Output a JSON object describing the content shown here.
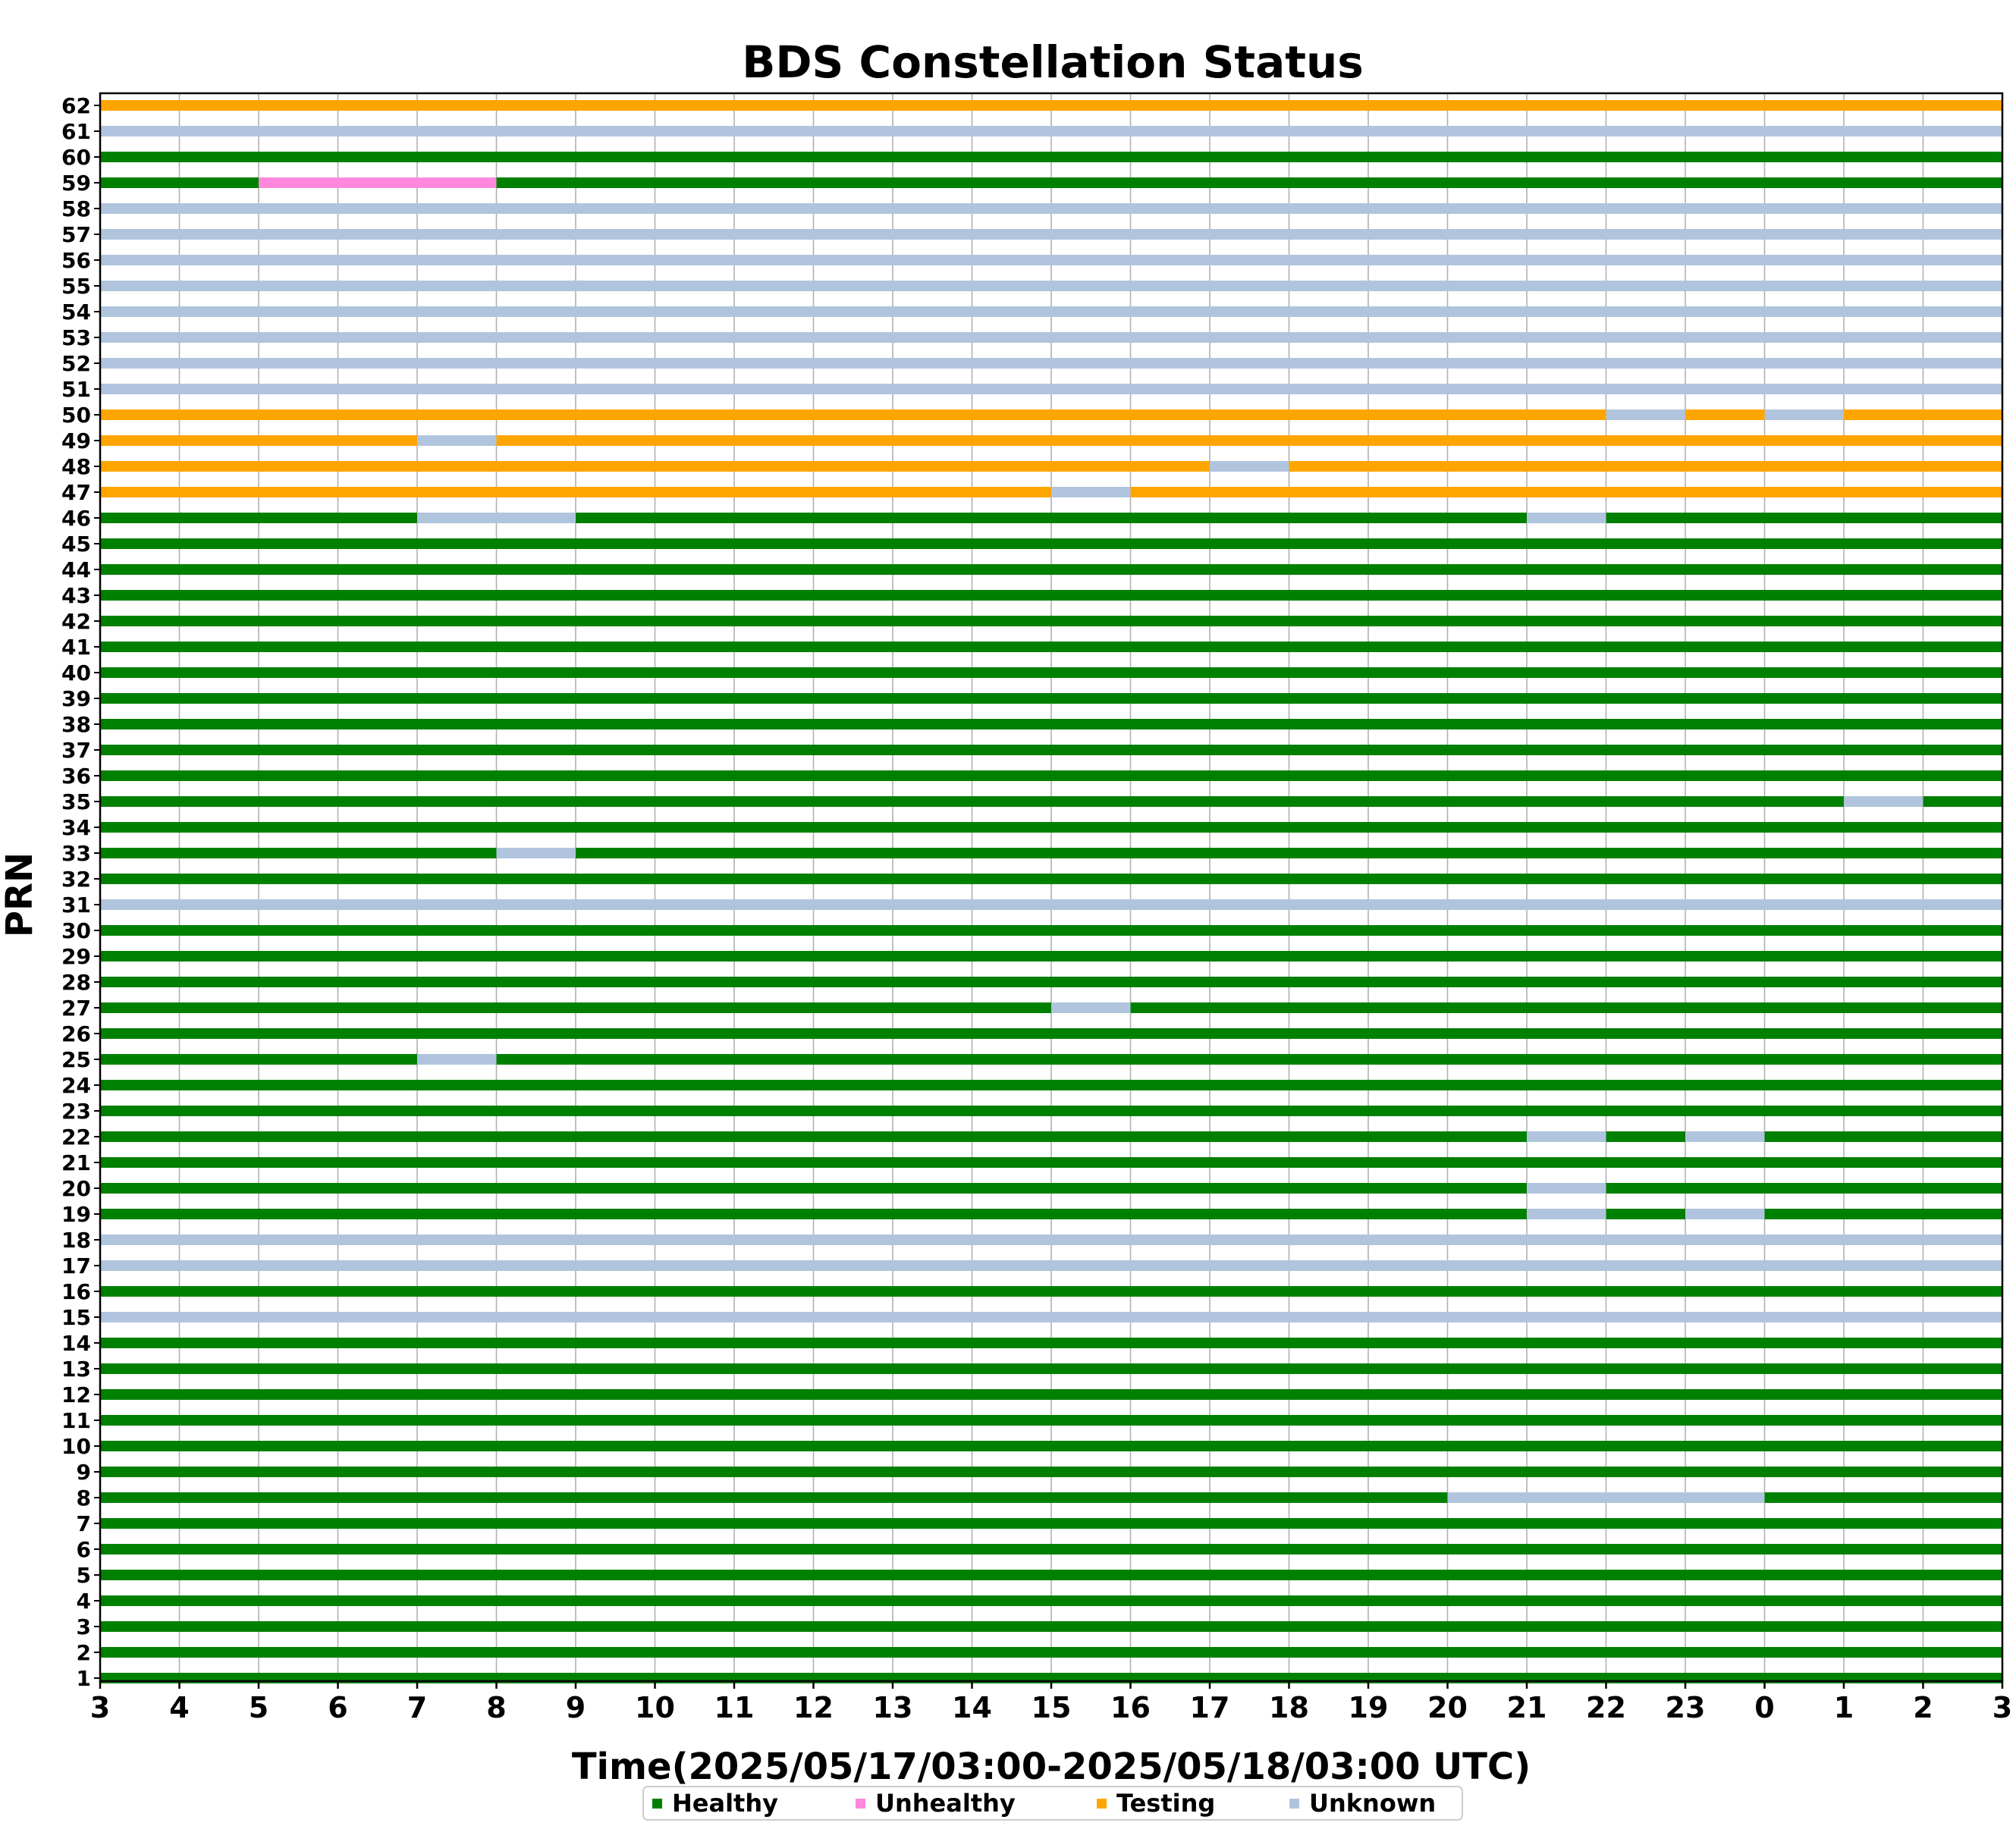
{
  "chart_data": {
    "type": "timeline",
    "title": "BDS Constellation Status",
    "xlabel": "Time(2025/05/17/03:00-2025/05/18/03:00 UTC)",
    "ylabel": "PRN",
    "x_tick_labels": [
      "3",
      "4",
      "5",
      "6",
      "7",
      "8",
      "9",
      "10",
      "11",
      "12",
      "13",
      "14",
      "15",
      "16",
      "17",
      "18",
      "19",
      "20",
      "21",
      "22",
      "23",
      "0",
      "1",
      "2",
      "3"
    ],
    "x_unit": "hours since 2025/05/17 03:00 UTC",
    "xlim": [
      0,
      24
    ],
    "status_colors": {
      "Healthy": "#008000",
      "Unhealthy": "#ff88dd",
      "Testing": "#ffa500",
      "Unknown": "#b0c4de"
    },
    "legend": [
      {
        "label": "Healthy",
        "status": "Healthy"
      },
      {
        "label": "Unhealthy",
        "status": "Unhealthy"
      },
      {
        "label": "Testing",
        "status": "Testing"
      },
      {
        "label": "Unknown",
        "status": "Unknown"
      }
    ],
    "legend_placement": "bottom-center",
    "grid": "vertical",
    "default_status": "Healthy",
    "rows": [
      {
        "prn": 62,
        "segments": [
          [
            0,
            24,
            "Testing"
          ]
        ]
      },
      {
        "prn": 61,
        "segments": [
          [
            0,
            24,
            "Unknown"
          ]
        ]
      },
      {
        "prn": 60,
        "segments": [
          [
            0,
            24,
            "Healthy"
          ]
        ]
      },
      {
        "prn": 59,
        "segments": [
          [
            0,
            2,
            "Healthy"
          ],
          [
            2,
            5,
            "Unhealthy"
          ],
          [
            5,
            24,
            "Healthy"
          ]
        ]
      },
      {
        "prn": 58,
        "segments": [
          [
            0,
            24,
            "Unknown"
          ]
        ]
      },
      {
        "prn": 57,
        "segments": [
          [
            0,
            24,
            "Unknown"
          ]
        ]
      },
      {
        "prn": 56,
        "segments": [
          [
            0,
            24,
            "Unknown"
          ]
        ]
      },
      {
        "prn": 55,
        "segments": [
          [
            0,
            24,
            "Unknown"
          ]
        ]
      },
      {
        "prn": 54,
        "segments": [
          [
            0,
            24,
            "Unknown"
          ]
        ]
      },
      {
        "prn": 53,
        "segments": [
          [
            0,
            24,
            "Unknown"
          ]
        ]
      },
      {
        "prn": 52,
        "segments": [
          [
            0,
            24,
            "Unknown"
          ]
        ]
      },
      {
        "prn": 51,
        "segments": [
          [
            0,
            24,
            "Unknown"
          ]
        ]
      },
      {
        "prn": 50,
        "segments": [
          [
            0,
            19,
            "Testing"
          ],
          [
            19,
            20,
            "Unknown"
          ],
          [
            20,
            21,
            "Testing"
          ],
          [
            21,
            22,
            "Unknown"
          ],
          [
            22,
            24,
            "Testing"
          ]
        ]
      },
      {
        "prn": 49,
        "segments": [
          [
            0,
            4,
            "Testing"
          ],
          [
            4,
            5,
            "Unknown"
          ],
          [
            5,
            24,
            "Testing"
          ]
        ]
      },
      {
        "prn": 48,
        "segments": [
          [
            0,
            14,
            "Testing"
          ],
          [
            14,
            15,
            "Unknown"
          ],
          [
            15,
            24,
            "Testing"
          ]
        ]
      },
      {
        "prn": 47,
        "segments": [
          [
            0,
            12,
            "Testing"
          ],
          [
            12,
            13,
            "Unknown"
          ],
          [
            13,
            24,
            "Testing"
          ]
        ]
      },
      {
        "prn": 46,
        "segments": [
          [
            0,
            4,
            "Healthy"
          ],
          [
            4,
            6,
            "Unknown"
          ],
          [
            6,
            18,
            "Healthy"
          ],
          [
            18,
            19,
            "Unknown"
          ],
          [
            19,
            24,
            "Healthy"
          ]
        ]
      },
      {
        "prn": 45,
        "segments": [
          [
            0,
            24,
            "Healthy"
          ]
        ]
      },
      {
        "prn": 44,
        "segments": [
          [
            0,
            24,
            "Healthy"
          ]
        ]
      },
      {
        "prn": 43,
        "segments": [
          [
            0,
            24,
            "Healthy"
          ]
        ]
      },
      {
        "prn": 42,
        "segments": [
          [
            0,
            24,
            "Healthy"
          ]
        ]
      },
      {
        "prn": 41,
        "segments": [
          [
            0,
            24,
            "Healthy"
          ]
        ]
      },
      {
        "prn": 40,
        "segments": [
          [
            0,
            24,
            "Healthy"
          ]
        ]
      },
      {
        "prn": 39,
        "segments": [
          [
            0,
            24,
            "Healthy"
          ]
        ]
      },
      {
        "prn": 38,
        "segments": [
          [
            0,
            24,
            "Healthy"
          ]
        ]
      },
      {
        "prn": 37,
        "segments": [
          [
            0,
            24,
            "Healthy"
          ]
        ]
      },
      {
        "prn": 36,
        "segments": [
          [
            0,
            24,
            "Healthy"
          ]
        ]
      },
      {
        "prn": 35,
        "segments": [
          [
            0,
            22,
            "Healthy"
          ],
          [
            22,
            23,
            "Unknown"
          ],
          [
            23,
            24,
            "Healthy"
          ]
        ]
      },
      {
        "prn": 34,
        "segments": [
          [
            0,
            24,
            "Healthy"
          ]
        ]
      },
      {
        "prn": 33,
        "segments": [
          [
            0,
            5,
            "Healthy"
          ],
          [
            5,
            6,
            "Unknown"
          ],
          [
            6,
            24,
            "Healthy"
          ]
        ]
      },
      {
        "prn": 32,
        "segments": [
          [
            0,
            24,
            "Healthy"
          ]
        ]
      },
      {
        "prn": 31,
        "segments": [
          [
            0,
            24,
            "Unknown"
          ]
        ]
      },
      {
        "prn": 30,
        "segments": [
          [
            0,
            24,
            "Healthy"
          ]
        ]
      },
      {
        "prn": 29,
        "segments": [
          [
            0,
            24,
            "Healthy"
          ]
        ]
      },
      {
        "prn": 28,
        "segments": [
          [
            0,
            24,
            "Healthy"
          ]
        ]
      },
      {
        "prn": 27,
        "segments": [
          [
            0,
            12,
            "Healthy"
          ],
          [
            12,
            13,
            "Unknown"
          ],
          [
            13,
            24,
            "Healthy"
          ]
        ]
      },
      {
        "prn": 26,
        "segments": [
          [
            0,
            24,
            "Healthy"
          ]
        ]
      },
      {
        "prn": 25,
        "segments": [
          [
            0,
            4,
            "Healthy"
          ],
          [
            4,
            5,
            "Unknown"
          ],
          [
            5,
            24,
            "Healthy"
          ]
        ]
      },
      {
        "prn": 24,
        "segments": [
          [
            0,
            24,
            "Healthy"
          ]
        ]
      },
      {
        "prn": 23,
        "segments": [
          [
            0,
            24,
            "Healthy"
          ]
        ]
      },
      {
        "prn": 22,
        "segments": [
          [
            0,
            18,
            "Healthy"
          ],
          [
            18,
            19,
            "Unknown"
          ],
          [
            19,
            20,
            "Healthy"
          ],
          [
            20,
            21,
            "Unknown"
          ],
          [
            21,
            24,
            "Healthy"
          ]
        ]
      },
      {
        "prn": 21,
        "segments": [
          [
            0,
            24,
            "Healthy"
          ]
        ]
      },
      {
        "prn": 20,
        "segments": [
          [
            0,
            18,
            "Healthy"
          ],
          [
            18,
            19,
            "Unknown"
          ],
          [
            19,
            24,
            "Healthy"
          ]
        ]
      },
      {
        "prn": 19,
        "segments": [
          [
            0,
            18,
            "Healthy"
          ],
          [
            18,
            19,
            "Unknown"
          ],
          [
            19,
            20,
            "Healthy"
          ],
          [
            20,
            21,
            "Unknown"
          ],
          [
            21,
            24,
            "Healthy"
          ]
        ]
      },
      {
        "prn": 18,
        "segments": [
          [
            0,
            24,
            "Unknown"
          ]
        ]
      },
      {
        "prn": 17,
        "segments": [
          [
            0,
            24,
            "Unknown"
          ]
        ]
      },
      {
        "prn": 16,
        "segments": [
          [
            0,
            24,
            "Healthy"
          ]
        ]
      },
      {
        "prn": 15,
        "segments": [
          [
            0,
            24,
            "Unknown"
          ]
        ]
      },
      {
        "prn": 14,
        "segments": [
          [
            0,
            24,
            "Healthy"
          ]
        ]
      },
      {
        "prn": 13,
        "segments": [
          [
            0,
            24,
            "Healthy"
          ]
        ]
      },
      {
        "prn": 12,
        "segments": [
          [
            0,
            24,
            "Healthy"
          ]
        ]
      },
      {
        "prn": 11,
        "segments": [
          [
            0,
            24,
            "Healthy"
          ]
        ]
      },
      {
        "prn": 10,
        "segments": [
          [
            0,
            24,
            "Healthy"
          ]
        ]
      },
      {
        "prn": 9,
        "segments": [
          [
            0,
            24,
            "Healthy"
          ]
        ]
      },
      {
        "prn": 8,
        "segments": [
          [
            0,
            17,
            "Healthy"
          ],
          [
            17,
            21,
            "Unknown"
          ],
          [
            21,
            24,
            "Healthy"
          ]
        ]
      },
      {
        "prn": 7,
        "segments": [
          [
            0,
            24,
            "Healthy"
          ]
        ]
      },
      {
        "prn": 6,
        "segments": [
          [
            0,
            24,
            "Healthy"
          ]
        ]
      },
      {
        "prn": 5,
        "segments": [
          [
            0,
            24,
            "Healthy"
          ]
        ]
      },
      {
        "prn": 4,
        "segments": [
          [
            0,
            24,
            "Healthy"
          ]
        ]
      },
      {
        "prn": 3,
        "segments": [
          [
            0,
            24,
            "Healthy"
          ]
        ]
      },
      {
        "prn": 2,
        "segments": [
          [
            0,
            24,
            "Healthy"
          ]
        ]
      },
      {
        "prn": 1,
        "segments": [
          [
            0,
            24,
            "Healthy"
          ]
        ]
      }
    ]
  }
}
